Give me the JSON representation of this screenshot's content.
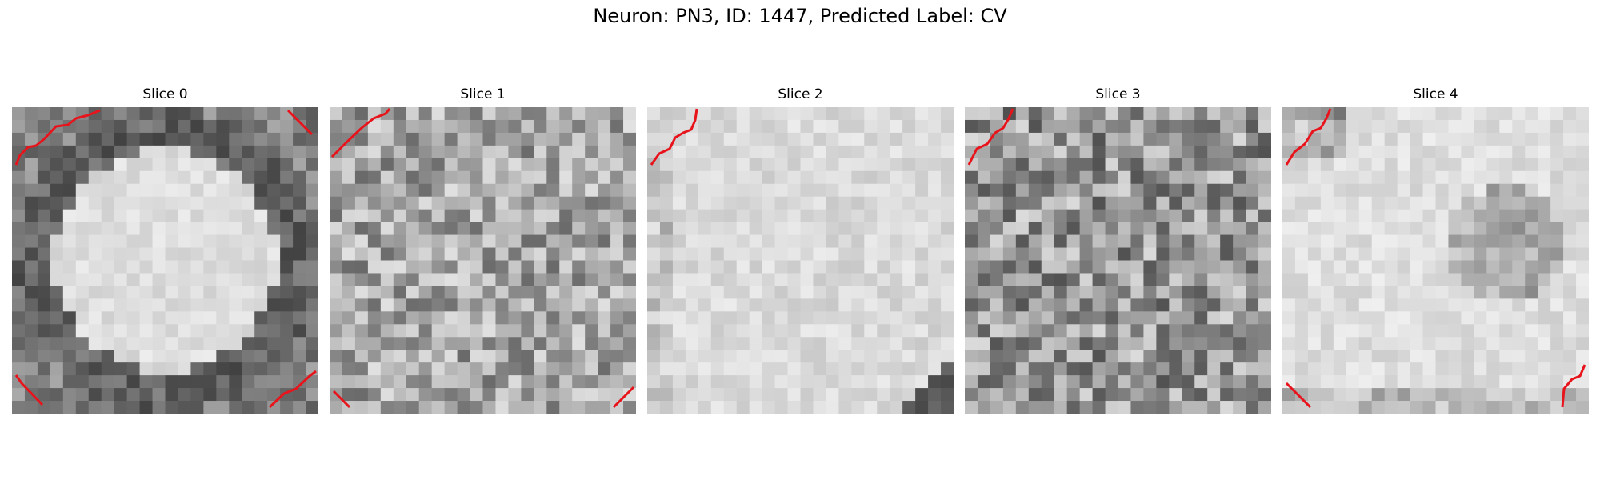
{
  "figure": {
    "title": "Neuron: PN3, ID: 1447, Predicted Label: CV"
  },
  "colors": {
    "background": "#ffffff",
    "marker_line": "#e8141c",
    "image_colormap": "grayscale"
  },
  "panels": [
    {
      "title": "Slice 0"
    },
    {
      "title": "Slice 1"
    },
    {
      "title": "Slice 2"
    },
    {
      "title": "Slice 3"
    },
    {
      "title": "Slice 4"
    }
  ]
}
